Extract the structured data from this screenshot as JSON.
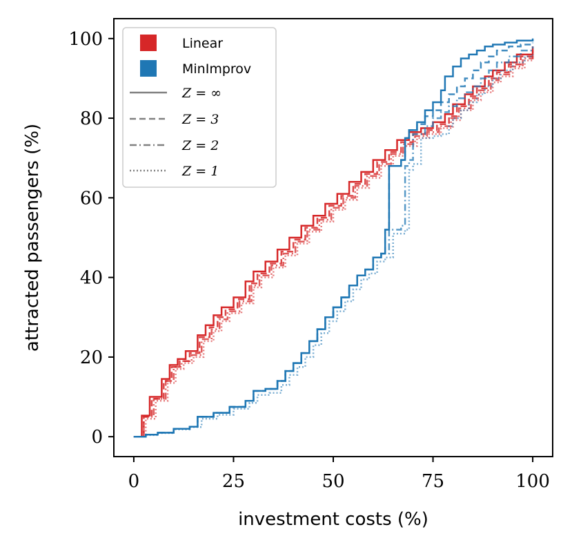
{
  "chart_data": {
    "type": "line",
    "title": "",
    "xlabel": "investment costs (%)",
    "ylabel": "attracted passengers (%)",
    "xlim": [
      -5,
      105
    ],
    "ylim": [
      -5,
      105
    ],
    "xticks": [
      0,
      25,
      50,
      75,
      100
    ],
    "yticks": [
      0,
      20,
      40,
      60,
      80,
      100
    ],
    "grid": false,
    "legend_position": "top-left",
    "legend": {
      "colors": [
        {
          "label": "Linear",
          "color": "#d62728"
        },
        {
          "label": "MinImprov",
          "color": "#1f77b4"
        }
      ],
      "styles": [
        {
          "label": "Z = ∞",
          "dash": "solid"
        },
        {
          "label": "Z = 3",
          "dash": "dashed"
        },
        {
          "label": "Z = 2",
          "dash": "dashdot"
        },
        {
          "label": "Z = 1",
          "dash": "dotted"
        }
      ]
    },
    "series": [
      {
        "name": "Linear, Z = ∞",
        "color": "#d62728",
        "dash": "solid",
        "opacity": 1.0,
        "x": [
          0,
          2,
          4,
          7,
          9,
          11,
          13,
          16,
          18,
          20,
          22,
          25,
          28,
          30,
          33,
          36,
          39,
          42,
          45,
          48,
          51,
          54,
          57,
          60,
          63,
          66,
          69,
          72,
          75,
          78,
          80,
          83,
          85,
          88,
          90,
          93,
          96,
          100
        ],
        "y": [
          0,
          5.3,
          10,
          14.5,
          18,
          19.5,
          21.5,
          25.5,
          28,
          30.5,
          32.5,
          35,
          39,
          41.5,
          44,
          47,
          50,
          53,
          55.5,
          58.5,
          61,
          64,
          66.5,
          69.5,
          72,
          74.5,
          76.5,
          77.5,
          79,
          81,
          83.5,
          86,
          88,
          90.5,
          92,
          94,
          96,
          98
        ]
      },
      {
        "name": "Linear, Z = 3",
        "color": "#d62728",
        "dash": "dashed",
        "opacity": 0.85,
        "x": [
          0,
          2.5,
          4.5,
          7.5,
          9.5,
          11.5,
          14,
          16.5,
          19,
          21,
          23,
          26,
          29,
          31,
          34,
          37,
          40,
          43,
          46,
          49,
          52,
          55,
          58,
          61,
          64,
          67,
          70,
          73,
          76,
          79,
          81,
          84,
          86,
          89,
          91,
          94,
          97,
          100
        ],
        "y": [
          0,
          5,
          9.5,
          14,
          17.5,
          19,
          21,
          25,
          27.5,
          30,
          32,
          34.5,
          38.5,
          41,
          43.5,
          46.5,
          49.5,
          52.5,
          55,
          58,
          60.5,
          63.5,
          66,
          69,
          71.5,
          74,
          76,
          77,
          78.5,
          80.5,
          83,
          85.5,
          87.5,
          90,
          91.5,
          93.5,
          95.5,
          97
        ]
      },
      {
        "name": "Linear, Z = 2",
        "color": "#d62728",
        "dash": "dashdot",
        "opacity": 0.75,
        "x": [
          0,
          2.5,
          5,
          8,
          10,
          12,
          14.5,
          17,
          19.5,
          21.5,
          23.5,
          26.5,
          29.5,
          31.5,
          34.5,
          37.5,
          40.5,
          43.5,
          46.5,
          49.5,
          52.5,
          55.5,
          58.5,
          61.5,
          64.5,
          67.5,
          70.5,
          73.5,
          76.5,
          79.5,
          81.5,
          84.5,
          86.5,
          89.5,
          91.5,
          94.5,
          97.5,
          100
        ],
        "y": [
          0,
          5,
          9.5,
          14,
          17.5,
          19,
          20.5,
          24.5,
          27,
          29.5,
          31.5,
          34,
          38,
          40.5,
          43,
          46,
          49,
          52,
          54.5,
          57.5,
          60,
          63,
          65.5,
          68.5,
          71,
          73.5,
          75.5,
          76.5,
          78,
          80,
          82.5,
          85,
          87,
          89.5,
          91,
          93,
          95,
          96.5
        ]
      },
      {
        "name": "Linear, Z = 1",
        "color": "#d62728",
        "dash": "dotted",
        "opacity": 0.6,
        "x": [
          0,
          3,
          5.5,
          8.5,
          10.5,
          12.5,
          15,
          17.5,
          20,
          22,
          24,
          27,
          30,
          32,
          35,
          38,
          41,
          44,
          47,
          50,
          53,
          56,
          59,
          62,
          65,
          68,
          71,
          74,
          77,
          80,
          82,
          85,
          87,
          90,
          92,
          95,
          98,
          100
        ],
        "y": [
          0,
          4.5,
          9,
          13.5,
          17,
          18.5,
          20,
          24,
          26.5,
          29,
          31,
          33.5,
          37.5,
          40,
          42.5,
          45.5,
          48.5,
          51.5,
          54,
          57,
          59.5,
          62.5,
          65,
          68,
          70.5,
          73,
          75,
          76,
          77.5,
          79.5,
          82,
          84.5,
          86.5,
          89,
          90.5,
          92.5,
          94.5,
          96
        ]
      },
      {
        "name": "MinImprov, Z = ∞",
        "color": "#1f77b4",
        "dash": "solid",
        "opacity": 1.0,
        "x": [
          0,
          3,
          6,
          10,
          14,
          16,
          20,
          24,
          28,
          30,
          33,
          36,
          38,
          40,
          42,
          44,
          46,
          48,
          50,
          52,
          54,
          56,
          58,
          60,
          62,
          63,
          64,
          67,
          68,
          69,
          71,
          73,
          75,
          77,
          78,
          80,
          82,
          84,
          86,
          88,
          90,
          93,
          96,
          100
        ],
        "y": [
          0,
          0.5,
          1,
          2,
          2.5,
          5,
          6,
          7.5,
          9,
          11.5,
          12,
          14,
          16.5,
          18.5,
          21,
          24,
          27,
          30,
          32.5,
          35,
          38,
          40.5,
          42,
          45,
          46,
          52,
          68,
          69.5,
          75,
          77,
          79,
          82,
          84,
          87,
          90.5,
          93,
          95,
          96,
          97,
          98,
          98.5,
          99,
          99.5,
          100
        ]
      },
      {
        "name": "MinImprov, Z = 3",
        "color": "#1f77b4",
        "dash": "dashed",
        "opacity": 0.85,
        "x": [
          0,
          3,
          6,
          10,
          14,
          16,
          20,
          24,
          28,
          30,
          33,
          36,
          38,
          40,
          42,
          44,
          46,
          48,
          50,
          52,
          54,
          56,
          58,
          60,
          62,
          63,
          64,
          67,
          68,
          69,
          71,
          73,
          75,
          77,
          79,
          81,
          83,
          85,
          87,
          89,
          91,
          94,
          97,
          100
        ],
        "y": [
          0,
          0.5,
          1,
          2,
          2.5,
          5,
          6,
          7.5,
          9,
          11.5,
          12,
          14,
          16.5,
          18.5,
          21,
          24,
          27,
          30,
          32.5,
          35,
          38,
          40.5,
          42,
          45,
          46,
          52,
          68,
          69.5,
          75,
          77,
          78.5,
          80.5,
          82,
          84,
          86,
          88,
          90,
          92,
          94,
          95.5,
          97,
          98,
          98.5,
          99
        ]
      },
      {
        "name": "MinImprov, Z = 2",
        "color": "#1f77b4",
        "dash": "dashdot",
        "opacity": 0.75,
        "x": [
          0,
          3,
          6,
          10,
          14,
          16,
          20,
          24,
          28,
          30,
          33,
          36,
          38,
          40,
          42,
          44,
          46,
          48,
          50,
          52,
          54,
          56,
          58,
          60,
          62,
          64,
          67,
          68,
          69,
          70,
          73,
          75,
          77,
          79,
          81,
          83,
          85,
          87,
          89,
          91,
          94,
          97,
          100
        ],
        "y": [
          0,
          0.5,
          1,
          2,
          2.5,
          5,
          6,
          7.5,
          9,
          11.5,
          12,
          14,
          16.5,
          18.5,
          21,
          24,
          27,
          30,
          32.5,
          35,
          38,
          40.5,
          42,
          45,
          46,
          52,
          53,
          68,
          69.5,
          76,
          78,
          80,
          81.5,
          83,
          85,
          86.5,
          88,
          90,
          92,
          94,
          95.5,
          97,
          98
        ]
      },
      {
        "name": "MinImprov, Z = 1",
        "color": "#1f77b4",
        "dash": "dotted",
        "opacity": 0.6,
        "x": [
          0,
          3,
          6,
          10,
          14,
          17,
          21,
          25,
          29,
          31,
          34,
          37,
          39,
          41,
          43,
          45,
          47,
          49,
          51,
          53,
          55,
          57,
          59,
          61,
          63,
          65,
          68,
          69,
          70,
          72,
          75,
          77,
          79,
          80,
          82,
          84,
          86,
          88,
          90,
          92,
          95,
          98,
          100
        ],
        "y": [
          0,
          0.4,
          0.9,
          1.8,
          2.4,
          4.5,
          5.5,
          7,
          8.5,
          10.5,
          11,
          13,
          15.5,
          17.5,
          20,
          23,
          26,
          29,
          31.5,
          34,
          37,
          39.5,
          41,
          44,
          45,
          51,
          52,
          67,
          68.5,
          75,
          75.5,
          76,
          78,
          80,
          82,
          84,
          86,
          88,
          90,
          92,
          94,
          95.5,
          96
        ]
      }
    ]
  }
}
